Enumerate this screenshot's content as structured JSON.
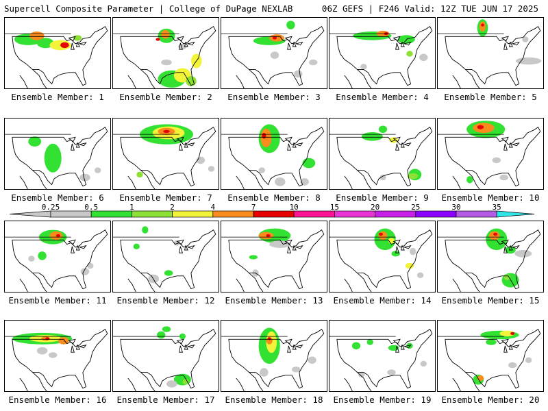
{
  "header": {
    "title": "Supercell Composite Parameter | College of DuPage NEXLAB",
    "run_info": "06Z GEFS | F246 Valid: 12Z TUE JUN 17 2025"
  },
  "member_label_prefix": "Ensemble Member: ",
  "members": [
    {
      "id": "1",
      "blobs": [
        [
          0.22,
          0.3,
          0.13,
          0.08,
          "s"
        ],
        [
          0.38,
          0.35,
          0.08,
          0.07,
          "s"
        ],
        [
          0.52,
          0.38,
          0.1,
          0.07,
          "m"
        ],
        [
          0.3,
          0.25,
          0.07,
          0.06,
          "h"
        ],
        [
          0.56,
          0.38,
          0.04,
          0.04,
          "x"
        ],
        [
          0.68,
          0.28,
          0.04,
          0.04,
          "w"
        ]
      ]
    },
    {
      "id": "2",
      "blobs": [
        [
          0.5,
          0.25,
          0.08,
          0.1,
          "s"
        ],
        [
          0.49,
          0.23,
          0.04,
          0.06,
          "h"
        ],
        [
          0.42,
          0.3,
          0.02,
          0.02,
          "x"
        ],
        [
          0.55,
          0.85,
          0.13,
          0.12,
          "s"
        ],
        [
          0.65,
          0.8,
          0.08,
          0.1,
          "m"
        ],
        [
          0.78,
          0.6,
          0.05,
          0.1,
          "m"
        ],
        [
          0.73,
          0.88,
          0.05,
          0.07,
          "w"
        ],
        [
          0.5,
          0.62,
          0.05,
          0.04,
          "g"
        ],
        [
          0.65,
          0.4,
          0.04,
          0.04,
          "g"
        ]
      ]
    },
    {
      "id": "3",
      "blobs": [
        [
          0.45,
          0.32,
          0.15,
          0.06,
          "s"
        ],
        [
          0.52,
          0.28,
          0.07,
          0.05,
          "h"
        ],
        [
          0.5,
          0.28,
          0.02,
          0.02,
          "x"
        ],
        [
          0.65,
          0.1,
          0.04,
          0.06,
          "s"
        ],
        [
          0.72,
          0.78,
          0.04,
          0.05,
          "g"
        ],
        [
          0.5,
          0.52,
          0.04,
          0.05,
          "g"
        ],
        [
          0.86,
          0.62,
          0.04,
          0.04,
          "g"
        ]
      ]
    },
    {
      "id": "4",
      "blobs": [
        [
          0.4,
          0.25,
          0.18,
          0.06,
          "s"
        ],
        [
          0.72,
          0.3,
          0.08,
          0.06,
          "s"
        ],
        [
          0.5,
          0.22,
          0.06,
          0.04,
          "h"
        ],
        [
          0.53,
          0.22,
          0.02,
          0.02,
          "x"
        ],
        [
          0.88,
          0.55,
          0.04,
          0.05,
          "g"
        ],
        [
          0.75,
          0.5,
          0.03,
          0.04,
          "w"
        ],
        [
          0.32,
          0.68,
          0.03,
          0.04,
          "g"
        ]
      ]
    },
    {
      "id": "5",
      "blobs": [
        [
          0.42,
          0.14,
          0.05,
          0.12,
          "s"
        ],
        [
          0.42,
          0.12,
          0.03,
          0.07,
          "h"
        ],
        [
          0.42,
          0.1,
          0.015,
          0.02,
          "x"
        ],
        [
          0.85,
          0.6,
          0.12,
          0.05,
          "g"
        ],
        [
          0.82,
          0.3,
          0.03,
          0.04,
          "g"
        ]
      ]
    },
    {
      "id": "6",
      "blobs": [
        [
          0.45,
          0.55,
          0.08,
          0.2,
          "s"
        ],
        [
          0.28,
          0.32,
          0.06,
          0.07,
          "s"
        ],
        [
          0.75,
          0.82,
          0.05,
          0.05,
          "g"
        ],
        [
          0.87,
          0.72,
          0.03,
          0.04,
          "g"
        ]
      ]
    },
    {
      "id": "7",
      "blobs": [
        [
          0.5,
          0.22,
          0.25,
          0.14,
          "s"
        ],
        [
          0.52,
          0.2,
          0.15,
          0.09,
          "m"
        ],
        [
          0.5,
          0.18,
          0.08,
          0.05,
          "h"
        ],
        [
          0.5,
          0.18,
          0.03,
          0.02,
          "x"
        ],
        [
          0.25,
          0.78,
          0.03,
          0.04,
          "w"
        ],
        [
          0.82,
          0.58,
          0.04,
          0.05,
          "g"
        ],
        [
          0.92,
          0.7,
          0.03,
          0.04,
          "g"
        ]
      ]
    },
    {
      "id": "8",
      "blobs": [
        [
          0.45,
          0.28,
          0.1,
          0.2,
          "s"
        ],
        [
          0.42,
          0.27,
          0.05,
          0.13,
          "h"
        ],
        [
          0.4,
          0.24,
          0.02,
          0.04,
          "x"
        ],
        [
          0.82,
          0.62,
          0.06,
          0.07,
          "s"
        ],
        [
          0.38,
          0.72,
          0.03,
          0.04,
          "g"
        ],
        [
          0.55,
          0.88,
          0.05,
          0.06,
          "g"
        ],
        [
          0.78,
          0.88,
          0.04,
          0.05,
          "g"
        ]
      ]
    },
    {
      "id": "9",
      "blobs": [
        [
          0.4,
          0.25,
          0.1,
          0.06,
          "s"
        ],
        [
          0.5,
          0.15,
          0.04,
          0.05,
          "s"
        ],
        [
          0.6,
          0.3,
          0.04,
          0.04,
          "m"
        ],
        [
          0.8,
          0.78,
          0.06,
          0.08,
          "s"
        ],
        [
          0.78,
          0.8,
          0.05,
          0.04,
          "w"
        ],
        [
          0.5,
          0.82,
          0.03,
          0.04,
          "g"
        ]
      ]
    },
    {
      "id": "10",
      "blobs": [
        [
          0.45,
          0.15,
          0.18,
          0.12,
          "s"
        ],
        [
          0.43,
          0.13,
          0.1,
          0.07,
          "h"
        ],
        [
          0.4,
          0.12,
          0.03,
          0.03,
          "x"
        ],
        [
          0.3,
          0.85,
          0.03,
          0.05,
          "s"
        ],
        [
          0.62,
          0.82,
          0.04,
          0.04,
          "g"
        ],
        [
          0.55,
          0.58,
          0.04,
          0.04,
          "g"
        ]
      ]
    },
    {
      "id": "11",
      "blobs": [
        [
          0.45,
          0.22,
          0.13,
          0.1,
          "s"
        ],
        [
          0.48,
          0.2,
          0.06,
          0.06,
          "h"
        ],
        [
          0.5,
          0.2,
          0.02,
          0.02,
          "x"
        ],
        [
          0.35,
          0.48,
          0.04,
          0.06,
          "s"
        ],
        [
          0.25,
          0.52,
          0.03,
          0.04,
          "g"
        ],
        [
          0.75,
          0.7,
          0.04,
          0.05,
          "g"
        ],
        [
          0.8,
          0.62,
          0.03,
          0.04,
          "g"
        ]
      ]
    },
    {
      "id": "12",
      "blobs": [
        [
          0.3,
          0.12,
          0.03,
          0.05,
          "s"
        ],
        [
          0.22,
          0.35,
          0.03,
          0.04,
          "s"
        ],
        [
          0.52,
          0.72,
          0.04,
          0.04,
          "s"
        ],
        [
          0.38,
          0.8,
          0.05,
          0.06,
          "g"
        ],
        [
          0.6,
          0.3,
          0.03,
          0.04,
          "g"
        ]
      ]
    },
    {
      "id": "13",
      "blobs": [
        [
          0.5,
          0.2,
          0.15,
          0.1,
          "s"
        ],
        [
          0.42,
          0.2,
          0.07,
          0.05,
          "h"
        ],
        [
          0.44,
          0.2,
          0.02,
          0.02,
          "x"
        ],
        [
          0.55,
          0.32,
          0.1,
          0.05,
          "g"
        ],
        [
          0.3,
          0.5,
          0.04,
          0.03,
          "s"
        ],
        [
          0.32,
          0.72,
          0.03,
          0.05,
          "g"
        ]
      ]
    },
    {
      "id": "14",
      "blobs": [
        [
          0.52,
          0.25,
          0.1,
          0.15,
          "s"
        ],
        [
          0.5,
          0.2,
          0.04,
          0.06,
          "h"
        ],
        [
          0.48,
          0.18,
          0.02,
          0.02,
          "x"
        ],
        [
          0.58,
          0.27,
          0.03,
          0.04,
          "m"
        ],
        [
          0.62,
          0.45,
          0.04,
          0.04,
          "s"
        ],
        [
          0.78,
          0.42,
          0.03,
          0.05,
          "g"
        ],
        [
          0.75,
          0.62,
          0.04,
          0.04,
          "m"
        ],
        [
          0.85,
          0.75,
          0.03,
          0.04,
          "g"
        ]
      ]
    },
    {
      "id": "15",
      "blobs": [
        [
          0.55,
          0.25,
          0.1,
          0.15,
          "s"
        ],
        [
          0.53,
          0.2,
          0.05,
          0.06,
          "h"
        ],
        [
          0.54,
          0.18,
          0.02,
          0.02,
          "x"
        ],
        [
          0.68,
          0.4,
          0.05,
          0.05,
          "s"
        ],
        [
          0.8,
          0.45,
          0.08,
          0.05,
          "g"
        ],
        [
          0.68,
          0.82,
          0.08,
          0.1,
          "s"
        ],
        [
          0.65,
          0.78,
          0.03,
          0.04,
          "w"
        ]
      ]
    },
    {
      "id": "16",
      "blobs": [
        [
          0.35,
          0.25,
          0.28,
          0.08,
          "s"
        ],
        [
          0.38,
          0.25,
          0.15,
          0.05,
          "m"
        ],
        [
          0.38,
          0.25,
          0.04,
          0.03,
          "h"
        ],
        [
          0.4,
          0.25,
          0.02,
          0.02,
          "x"
        ],
        [
          0.55,
          0.28,
          0.05,
          0.05,
          "h"
        ],
        [
          0.35,
          0.42,
          0.05,
          0.05,
          "g"
        ],
        [
          0.45,
          0.48,
          0.04,
          0.04,
          "g"
        ]
      ]
    },
    {
      "id": "17",
      "blobs": [
        [
          0.45,
          0.2,
          0.04,
          0.05,
          "s"
        ],
        [
          0.5,
          0.12,
          0.04,
          0.04,
          "s"
        ],
        [
          0.65,
          0.22,
          0.03,
          0.04,
          "s"
        ],
        [
          0.65,
          0.82,
          0.08,
          0.08,
          "s"
        ],
        [
          0.68,
          0.85,
          0.03,
          0.04,
          "w"
        ],
        [
          0.55,
          0.88,
          0.05,
          0.05,
          "g"
        ]
      ]
    },
    {
      "id": "18",
      "blobs": [
        [
          0.45,
          0.35,
          0.1,
          0.25,
          "s"
        ],
        [
          0.47,
          0.3,
          0.05,
          0.15,
          "m"
        ],
        [
          0.45,
          0.28,
          0.03,
          0.05,
          "h"
        ],
        [
          0.45,
          0.25,
          0.015,
          0.02,
          "x"
        ],
        [
          0.4,
          0.72,
          0.04,
          0.06,
          "g"
        ],
        [
          0.85,
          0.55,
          0.04,
          0.05,
          "g"
        ],
        [
          0.7,
          0.68,
          0.04,
          0.04,
          "g"
        ]
      ]
    },
    {
      "id": "19",
      "blobs": [
        [
          0.25,
          0.35,
          0.04,
          0.05,
          "s"
        ],
        [
          0.38,
          0.3,
          0.03,
          0.04,
          "s"
        ],
        [
          0.6,
          0.38,
          0.05,
          0.04,
          "s"
        ],
        [
          0.75,
          0.35,
          0.03,
          0.04,
          "s"
        ],
        [
          0.58,
          0.72,
          0.04,
          0.04,
          "g"
        ],
        [
          0.88,
          0.6,
          0.03,
          0.04,
          "g"
        ],
        [
          0.3,
          0.75,
          0.03,
          0.04,
          "g"
        ]
      ]
    },
    {
      "id": "20",
      "blobs": [
        [
          0.58,
          0.2,
          0.18,
          0.06,
          "s"
        ],
        [
          0.65,
          0.18,
          0.07,
          0.04,
          "m"
        ],
        [
          0.7,
          0.18,
          0.02,
          0.02,
          "x"
        ],
        [
          0.5,
          0.3,
          0.05,
          0.04,
          "s"
        ],
        [
          0.38,
          0.82,
          0.05,
          0.07,
          "s"
        ],
        [
          0.4,
          0.8,
          0.03,
          0.04,
          "h"
        ],
        [
          0.7,
          0.62,
          0.04,
          0.04,
          "g"
        ],
        [
          0.85,
          0.55,
          0.03,
          0.04,
          "g"
        ]
      ]
    }
  ],
  "colorbar": {
    "ticks": [
      "0.25",
      "0.5",
      "1",
      "2",
      "4",
      "7",
      "10",
      "15",
      "20",
      "25",
      "30",
      "35"
    ],
    "colors": [
      "#c8c8c8",
      "#33e133",
      "#8ce036",
      "#f3f33a",
      "#fa8c1e",
      "#e60000",
      "#ff1493",
      "#e935d5",
      "#c71ee8",
      "#8c00ff",
      "#b45ae6",
      "#2ee6e6"
    ]
  },
  "shade_colors": {
    "g": "#c8c8c8",
    "s": "#33e133",
    "w": "#8ce036",
    "m": "#f3f33a",
    "h": "#fa8c1e",
    "x": "#e60000"
  }
}
